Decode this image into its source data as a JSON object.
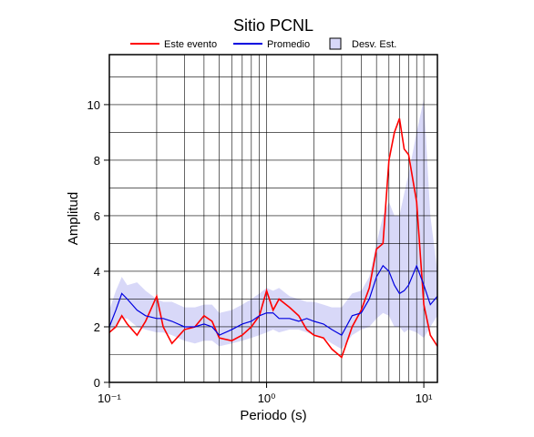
{
  "chart_data": {
    "type": "line",
    "title": "Sitio PCNL",
    "xlabel": "Periodo (s)",
    "ylabel": "Amplitud",
    "xscale": "log",
    "xlim": [
      0.1,
      12.2
    ],
    "ylim": [
      0,
      11.8
    ],
    "xticks": [
      {
        "value": 0.1,
        "label": "10⁻¹"
      },
      {
        "value": 1,
        "label": "10⁰"
      },
      {
        "value": 10,
        "label": "10¹"
      }
    ],
    "yticks": [
      0,
      2,
      4,
      6,
      8,
      10
    ],
    "xgrid": [
      0.2,
      0.3,
      0.4,
      0.5,
      0.6,
      0.7,
      0.8,
      0.9,
      1,
      2,
      3,
      4,
      5,
      6,
      7,
      8,
      9,
      10
    ],
    "ygrid": [
      1,
      2,
      3,
      4,
      5,
      6,
      7,
      8,
      9,
      10,
      11
    ],
    "grid": true,
    "x": [
      0.1,
      0.11,
      0.12,
      0.13,
      0.15,
      0.17,
      0.2,
      0.22,
      0.25,
      0.3,
      0.35,
      0.4,
      0.45,
      0.5,
      0.6,
      0.7,
      0.8,
      0.9,
      1.0,
      1.1,
      1.2,
      1.4,
      1.6,
      1.8,
      2.0,
      2.3,
      2.6,
      3.0,
      3.5,
      4.0,
      4.5,
      5.0,
      5.5,
      6.0,
      6.5,
      7.0,
      7.5,
      8.0,
      9.0,
      10.0,
      11.0,
      12.2
    ],
    "band": {
      "name": "Desv. Est.",
      "color": "#d8d8f8",
      "lower": [
        1.9,
        2.0,
        2.3,
        2.3,
        2.0,
        1.9,
        1.8,
        1.8,
        1.7,
        1.5,
        1.4,
        1.5,
        1.5,
        1.3,
        1.4,
        1.5,
        1.6,
        1.7,
        1.8,
        1.9,
        1.8,
        1.9,
        1.9,
        1.8,
        1.7,
        1.6,
        1.4,
        1.2,
        1.7,
        1.9,
        2.0,
        2.3,
        2.5,
        2.4,
        2.0,
        2.0,
        1.8,
        1.9,
        1.8,
        1.6,
        2.0,
        2.4
      ],
      "upper": [
        2.6,
        3.3,
        3.8,
        3.5,
        3.6,
        3.3,
        3.0,
        2.9,
        2.9,
        2.7,
        2.7,
        2.8,
        2.8,
        2.5,
        2.6,
        2.8,
        3.0,
        3.2,
        3.4,
        3.3,
        3.4,
        3.1,
        3.0,
        2.9,
        2.9,
        2.8,
        2.7,
        2.7,
        3.2,
        3.3,
        3.8,
        5.0,
        6.0,
        6.5,
        6.0,
        6.0,
        6.8,
        7.5,
        9.0,
        10.2,
        6.0,
        4.0
      ]
    },
    "series": [
      {
        "name": "Este evento",
        "color": "#ff0000",
        "values": [
          1.8,
          2.0,
          2.4,
          2.1,
          1.7,
          2.2,
          3.1,
          2.0,
          1.4,
          1.9,
          2.0,
          2.4,
          2.2,
          1.6,
          1.5,
          1.7,
          2.0,
          2.4,
          3.3,
          2.6,
          3.0,
          2.7,
          2.4,
          1.9,
          1.7,
          1.6,
          1.2,
          0.9,
          2.0,
          2.6,
          3.4,
          4.8,
          5.0,
          8.0,
          9.0,
          9.5,
          8.4,
          8.2,
          6.5,
          2.8,
          1.7,
          1.3
        ]
      },
      {
        "name": "Promedio",
        "color": "#0000e0",
        "values": [
          2.0,
          2.6,
          3.2,
          3.0,
          2.6,
          2.4,
          2.3,
          2.3,
          2.2,
          2.0,
          2.0,
          2.1,
          2.0,
          1.7,
          1.9,
          2.1,
          2.2,
          2.4,
          2.5,
          2.5,
          2.3,
          2.3,
          2.2,
          2.3,
          2.2,
          2.1,
          1.9,
          1.7,
          2.4,
          2.5,
          3.0,
          3.8,
          4.2,
          4.0,
          3.5,
          3.2,
          3.3,
          3.5,
          4.2,
          3.5,
          2.8,
          3.1
        ]
      }
    ]
  }
}
